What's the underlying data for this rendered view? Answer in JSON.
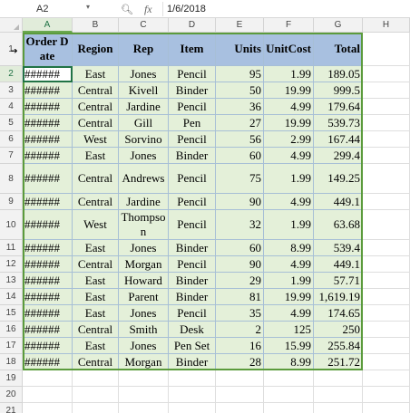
{
  "formula_bar": {
    "cell_ref": "A2",
    "search_icon": "zoom-icon",
    "fx_label": "fx",
    "formula_value": "1/6/2018"
  },
  "columns": [
    "A",
    "B",
    "C",
    "D",
    "E",
    "F",
    "G",
    "H"
  ],
  "rows": [
    "1",
    "2",
    "3",
    "4",
    "5",
    "6",
    "7",
    "8",
    "9",
    "10",
    "11",
    "12",
    "13",
    "14",
    "15",
    "16",
    "17",
    "18",
    "19",
    "20",
    "21"
  ],
  "table": {
    "headers": [
      "Order Date",
      "Region",
      "Rep",
      "Item",
      "Units",
      "UnitCost",
      "Total"
    ],
    "rows": [
      [
        "######",
        "East",
        "Jones",
        "Pencil",
        "95",
        "1.99",
        "189.05"
      ],
      [
        "######",
        "Central",
        "Kivell",
        "Binder",
        "50",
        "19.99",
        "999.5"
      ],
      [
        "######",
        "Central",
        "Jardine",
        "Pencil",
        "36",
        "4.99",
        "179.64"
      ],
      [
        "######",
        "Central",
        "Gill",
        "Pen",
        "27",
        "19.99",
        "539.73"
      ],
      [
        "######",
        "West",
        "Sorvino",
        "Pencil",
        "56",
        "2.99",
        "167.44"
      ],
      [
        "######",
        "East",
        "Jones",
        "Binder",
        "60",
        "4.99",
        "299.4"
      ],
      [
        "######",
        "Central",
        "Andrews",
        "Pencil",
        "75",
        "1.99",
        "149.25"
      ],
      [
        "######",
        "Central",
        "Jardine",
        "Pencil",
        "90",
        "4.99",
        "449.1"
      ],
      [
        "######",
        "West",
        "Thompson",
        "Pencil",
        "32",
        "1.99",
        "63.68"
      ],
      [
        "######",
        "East",
        "Jones",
        "Binder",
        "60",
        "8.99",
        "539.4"
      ],
      [
        "######",
        "Central",
        "Morgan",
        "Pencil",
        "90",
        "4.99",
        "449.1"
      ],
      [
        "######",
        "East",
        "Howard",
        "Binder",
        "29",
        "1.99",
        "57.71"
      ],
      [
        "######",
        "East",
        "Parent",
        "Binder",
        "81",
        "19.99",
        "1,619.19"
      ],
      [
        "######",
        "East",
        "Jones",
        "Pencil",
        "35",
        "4.99",
        "174.65"
      ],
      [
        "######",
        "Central",
        "Smith",
        "Desk",
        "2",
        "125",
        "250"
      ],
      [
        "######",
        "East",
        "Jones",
        "Pen Set",
        "16",
        "15.99",
        "255.84"
      ],
      [
        "######",
        "Central",
        "Morgan",
        "Binder",
        "28",
        "8.99",
        "251.72"
      ]
    ]
  },
  "colors": {
    "table_fill": "#e4f0d9",
    "header_fill": "#a8c0e0",
    "range_border": "#5b9b3c",
    "selected_header": "#217346"
  }
}
